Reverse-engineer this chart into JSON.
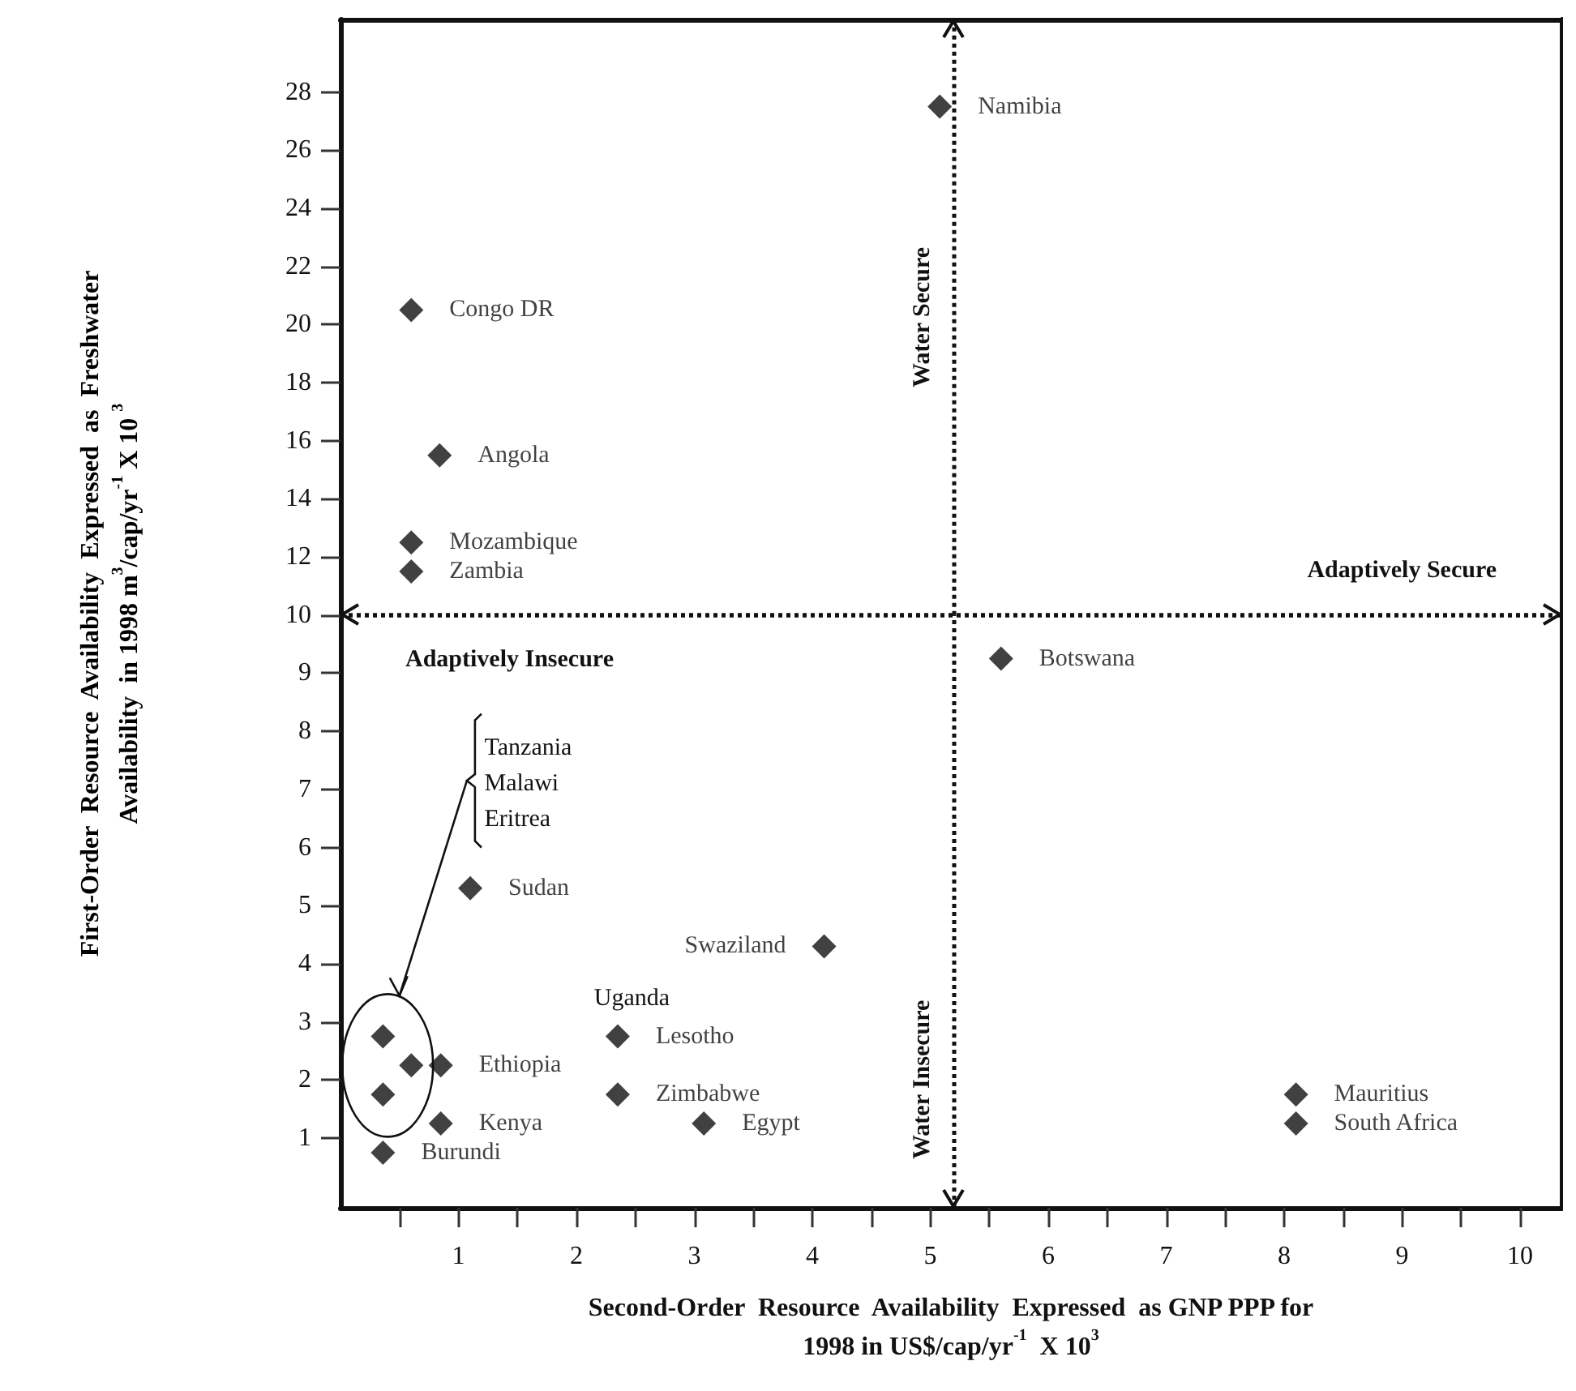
{
  "chart_data": [
    {
      "type": "scatter",
      "x": [
        5.08,
        0.6,
        0.84,
        0.6,
        0.6
      ],
      "values": [
        27.5,
        20.5,
        15.5,
        12.5,
        11.5
      ],
      "value_labels": [
        "Namibia",
        "Congo DR",
        "Angola",
        "Mozambique",
        "Zambia"
      ],
      "color": "#111111",
      "marker": "diamond",
      "grid": false,
      "tick_labels": "y",
      "xlim": [
        0,
        10.35
      ],
      "ylim": [
        10,
        30.5
      ],
      "yticks": [
        12,
        14,
        16,
        18,
        20,
        22,
        24,
        26,
        28
      ],
      "ref_lines": [
        {
          "axis": "x",
          "value": 5.2,
          "line_style": "dotted",
          "color": "#111111",
          "label": "Water Secure"
        },
        {
          "axis": "y",
          "value": 10,
          "line_style": "dotted",
          "color": "#111111",
          "label": "Adaptively Secure"
        }
      ]
    },
    {
      "type": "scatter",
      "xlabel": "Second-Order  Resource  Availability  Expressed  as GNP PPP for\n1998 in US$/cap/yr$^{-1}$  X 10$^{3}$",
      "ylabel": "First-Order  Resource  Availability  Expressed  as  Freshwater\nAvailability  in 1998 m$^{3}$/cap/yr$^{-1}$ X 10 $^{3}$",
      "x": [
        5.6,
        1.1,
        4.1,
        2.35,
        2.35,
        3.08,
        8.1,
        8.1,
        0.85,
        0.6,
        0.85,
        0.36,
        0.36,
        0.36
      ],
      "values": [
        9.25,
        5.3,
        4.3,
        2.75,
        1.75,
        1.25,
        1.75,
        1.25,
        2.25,
        2.25,
        1.25,
        0.75,
        2.75,
        1.75
      ],
      "value_labels": [
        "Botswana",
        "Sudan",
        "Swaziland",
        "Lesotho",
        "Zimbabwe",
        "Egypt",
        "Mauritius",
        "South Africa",
        "Ethiopia",
        null,
        "Kenya",
        "Burundi",
        null,
        null
      ],
      "color": "#111111",
      "marker": "diamond",
      "grid": false,
      "xlim": [
        0,
        10.35
      ],
      "xticks": [
        {
          "value": 0.5,
          "label": null
        },
        1,
        {
          "value": 1.5,
          "label": null
        },
        2,
        {
          "value": 2.5,
          "label": null
        },
        3,
        {
          "value": 3.5,
          "label": null
        },
        4,
        {
          "value": 4.5,
          "label": null
        },
        5,
        {
          "value": 5.5,
          "label": null
        },
        6,
        {
          "value": 6.5,
          "label": null
        },
        7,
        {
          "value": 7.5,
          "label": null
        },
        8,
        {
          "value": 8.5,
          "label": null
        },
        9,
        {
          "value": 9.5,
          "label": null
        },
        10
      ],
      "ylim": [
        -0.2,
        10
      ],
      "yticks": [
        1,
        2,
        3,
        4,
        5,
        6,
        7,
        8,
        9,
        10
      ],
      "ref_lines": [
        {
          "axis": "x",
          "value": 5.2,
          "line_style": "dotted",
          "color": "#111111",
          "label": "Water Insecure"
        },
        {
          "axis": "y",
          "value": 10,
          "line_style": "dotted",
          "color": "#111111",
          "label": "Adaptively Insecure"
        }
      ],
      "annotations": [
        "Tanzania\nMalawi\nEritrea",
        "Uganda"
      ]
    }
  ]
}
